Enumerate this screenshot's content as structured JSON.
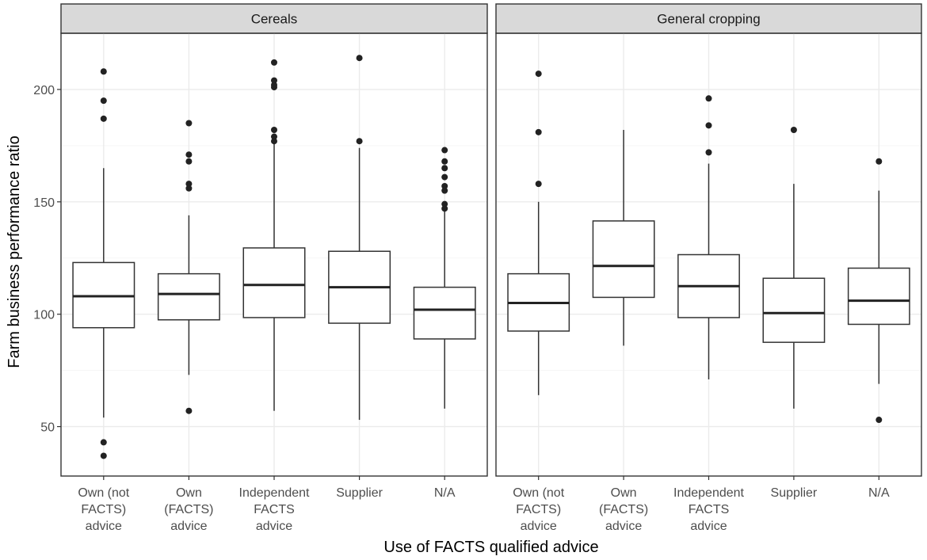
{
  "chart_data": {
    "type": "boxplot",
    "xlabel": "Use of FACTS qualified advice",
    "ylabel": "Farm business performance ratio",
    "ylim": [
      28,
      225
    ],
    "yticks": [
      50,
      100,
      150,
      200
    ],
    "category_labels": [
      [
        "Own (not",
        "FACTS)",
        "advice"
      ],
      [
        "Own",
        "(FACTS)",
        "advice"
      ],
      [
        "Independent",
        "FACTS",
        "advice"
      ],
      [
        "Supplier"
      ],
      [
        "N/A"
      ]
    ],
    "panels": [
      {
        "title": "Cereals",
        "boxes": [
          {
            "category": "Own (not FACTS) advice",
            "low": 54,
            "q1": 94,
            "median": 108,
            "q3": 123,
            "high": 165,
            "outliers": [
              208,
              195,
              187,
              43,
              37
            ]
          },
          {
            "category": "Own (FACTS) advice",
            "low": 73,
            "q1": 97.5,
            "median": 109,
            "q3": 118,
            "high": 144,
            "outliers": [
              185,
              171,
              168,
              158,
              156,
              57
            ]
          },
          {
            "category": "Independent FACTS advice",
            "low": 57,
            "q1": 98.5,
            "median": 113,
            "q3": 129.5,
            "high": 177,
            "outliers": [
              212,
              204,
              202,
              201,
              182,
              179,
              177
            ]
          },
          {
            "category": "Supplier",
            "low": 53,
            "q1": 96,
            "median": 112,
            "q3": 128,
            "high": 174,
            "outliers": [
              214,
              177
            ]
          },
          {
            "category": "N/A",
            "low": 58,
            "q1": 89,
            "median": 102,
            "q3": 112,
            "high": 146,
            "outliers": [
              173,
              168,
              165,
              161,
              157,
              155,
              149,
              147
            ]
          }
        ]
      },
      {
        "title": "General cropping",
        "boxes": [
          {
            "category": "Own (not FACTS) advice",
            "low": 64,
            "q1": 92.5,
            "median": 105,
            "q3": 118,
            "high": 150,
            "outliers": [
              207,
              181,
              158
            ]
          },
          {
            "category": "Own (FACTS) advice",
            "low": 86,
            "q1": 107.5,
            "median": 121.5,
            "q3": 141.5,
            "high": 182,
            "outliers": []
          },
          {
            "category": "Independent FACTS advice",
            "low": 71,
            "q1": 98.5,
            "median": 112.5,
            "q3": 126.5,
            "high": 167,
            "outliers": [
              196,
              184,
              172
            ]
          },
          {
            "category": "Supplier",
            "low": 58,
            "q1": 87.5,
            "median": 100.5,
            "q3": 116,
            "high": 158,
            "outliers": [
              182
            ]
          },
          {
            "category": "N/A",
            "low": 69,
            "q1": 95.5,
            "median": 106,
            "q3": 120.5,
            "high": 155,
            "outliers": [
              168,
              53
            ]
          }
        ]
      }
    ]
  }
}
